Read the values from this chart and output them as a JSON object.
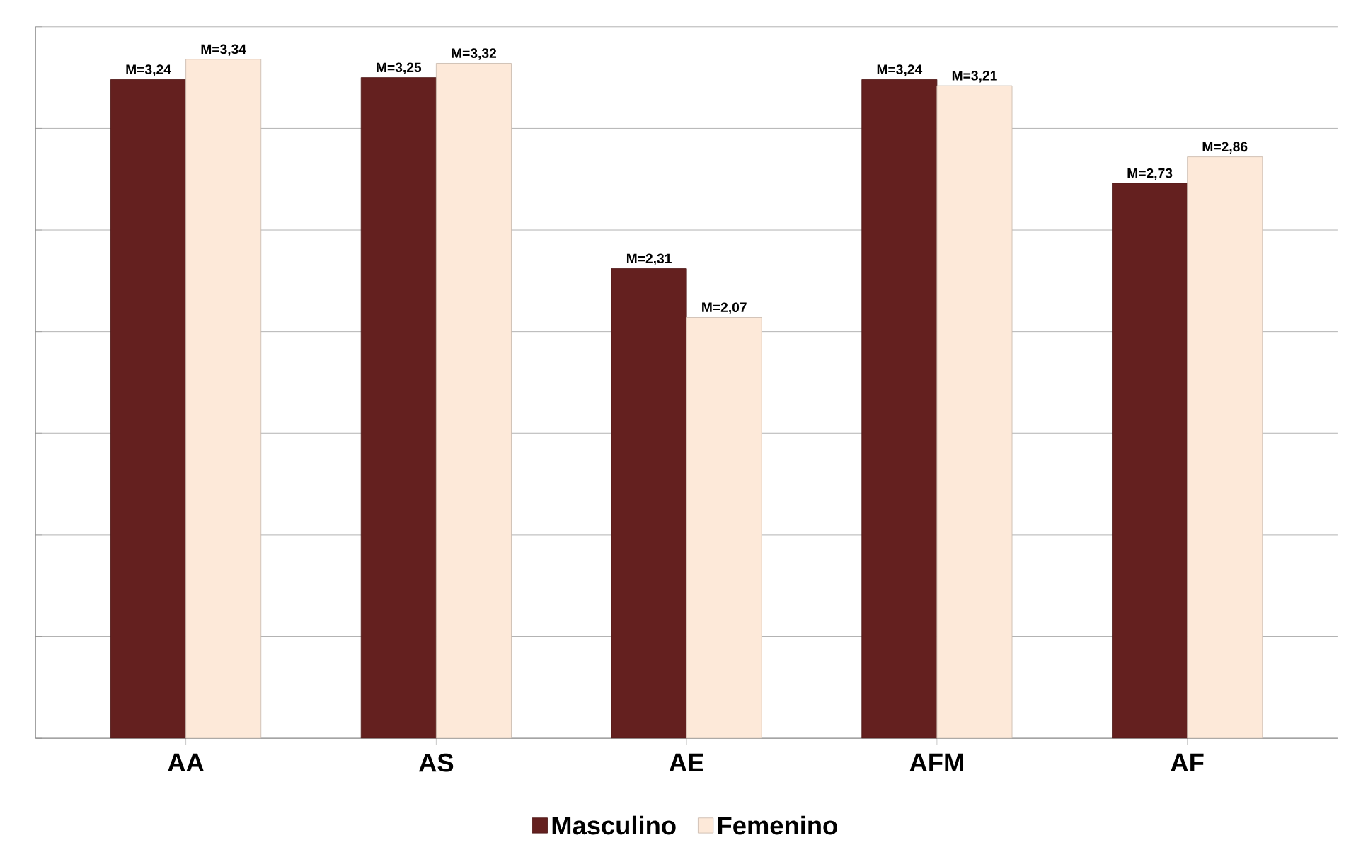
{
  "chart_data": {
    "type": "bar",
    "categories": [
      "AA",
      "AS",
      "AE",
      "AFM",
      "AF"
    ],
    "series": [
      {
        "name": "Masculino",
        "color": "#64201f",
        "values": [
          3.24,
          3.25,
          2.31,
          3.24,
          2.73
        ],
        "value_labels": [
          "M=3,24",
          "M=3,25",
          "M=2,31",
          "M=3,24",
          "M=2,73"
        ]
      },
      {
        "name": "Femenino",
        "color": "#fde9d9",
        "values": [
          3.34,
          3.32,
          2.07,
          3.21,
          2.86
        ],
        "value_labels": [
          "M=3,34",
          "M=3,32",
          "M=2,07",
          "M=3,21",
          "M=2,86"
        ]
      }
    ],
    "ylim": [
      0,
      3.5
    ],
    "yticks": [
      {
        "value": 0,
        "label": null
      },
      {
        "value": 0.5,
        "label": null
      },
      {
        "value": 1,
        "label": null
      },
      {
        "value": 1.5,
        "label": null
      },
      {
        "value": 2,
        "label": null
      },
      {
        "value": 2.5,
        "label": null
      },
      {
        "value": 3,
        "label": null
      },
      {
        "value": 3.5,
        "label": null
      }
    ],
    "tick_labels": "x",
    "grid": "y",
    "legend": "bottom"
  }
}
